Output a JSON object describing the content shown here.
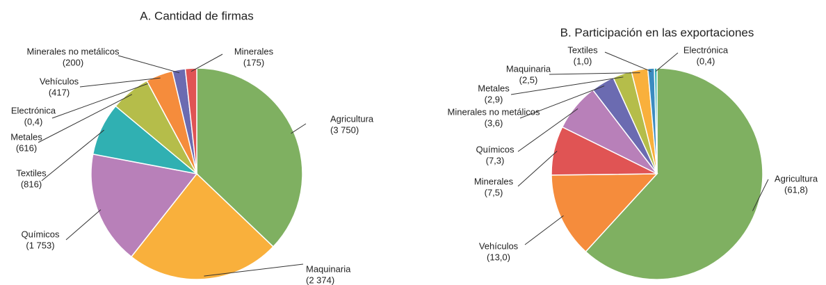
{
  "chart_data": [
    {
      "type": "pie",
      "title": "A. Cantidad de firmas",
      "categories": [
        "Agricultura",
        "Maquinaria",
        "Químicos",
        "Textiles",
        "Metales",
        "Electrónica",
        "Vehículos",
        "Minerales no metálicos",
        "Minerales"
      ],
      "values": [
        3750,
        2374,
        1753,
        816,
        616,
        0.4,
        417,
        200,
        175
      ],
      "value_labels": [
        "(3 750)",
        "(2 374)",
        "(1 753)",
        "(816)",
        "(616)",
        "(0,4)",
        "(417)",
        "(200)",
        "(175)"
      ],
      "colors": [
        "#7fb061",
        "#f9b03c",
        "#b880b9",
        "#30b0b2",
        "#b5bd4a",
        "#3b8bc0",
        "#f58c3c",
        "#6b6bb1",
        "#e05454"
      ]
    },
    {
      "type": "pie",
      "title": "B. Participación en las exportaciones",
      "categories": [
        "Agricultura",
        "Vehículos",
        "Minerales",
        "Químicos",
        "Minerales no metálicos",
        "Metales",
        "Maquinaria",
        "Textiles",
        "Electrónica"
      ],
      "values": [
        61.8,
        13.0,
        7.5,
        7.3,
        3.6,
        2.9,
        2.5,
        1.0,
        0.4
      ],
      "value_labels": [
        "(61,8)",
        "(13,0)",
        "(7,5)",
        "(7,3)",
        "(3,6)",
        "(2,9)",
        "(2,5)",
        "(1,0)",
        "(0,4)"
      ],
      "colors": [
        "#7fb061",
        "#f58c3c",
        "#e05454",
        "#b880b9",
        "#6b6bb1",
        "#b5bd4a",
        "#f9b03c",
        "#3b8bc0",
        "#30b0b2"
      ]
    }
  ]
}
